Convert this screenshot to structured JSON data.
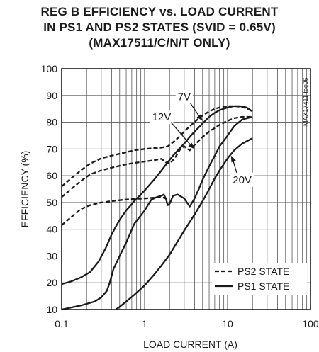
{
  "chart_data": {
    "type": "line",
    "title_lines": [
      "REG B EFFICIENCY vs. LOAD CURRENT",
      "IN PS1 AND PS2 STATES (SVID = 0.65V)",
      "(MAX17511/C/N/T ONLY)"
    ],
    "xlabel": "LOAD CURRENT (A)",
    "ylabel": "EFFICIENCY (%)",
    "x_scale": "log",
    "xlim": [
      0.1,
      100
    ],
    "ylim": [
      10,
      100
    ],
    "x_ticks": [
      0.1,
      1,
      10,
      100
    ],
    "x_tick_labels": [
      "0.1",
      "1",
      "10",
      "100"
    ],
    "y_ticks": [
      10,
      20,
      30,
      40,
      50,
      60,
      70,
      80,
      90,
      100
    ],
    "y_tick_labels": [
      "10",
      "20",
      "30",
      "40",
      "50",
      "60",
      "70",
      "80",
      "90",
      "100"
    ],
    "grid": true,
    "watermark": "MAX17411 toc06",
    "legend": {
      "position": "bottom-right",
      "entries": [
        {
          "label": "PS2 STATE",
          "style": "dashed"
        },
        {
          "label": "PS1 STATE",
          "style": "solid"
        }
      ]
    },
    "annotations": [
      {
        "text": "7V",
        "x": 3.0,
        "y": 89.5,
        "arrow_to": [
          5.0,
          80.5
        ]
      },
      {
        "text": "12V",
        "x": 1.6,
        "y": 82.0,
        "arrow_to": [
          4.0,
          70.0
        ]
      },
      {
        "text": "20V",
        "x": 15.0,
        "y": 58.5,
        "arrow_to": [
          11.0,
          67.5
        ]
      }
    ],
    "series": [
      {
        "style": "dashed",
        "x": [
          0.1,
          0.13,
          0.17,
          0.22,
          0.3,
          0.4,
          0.55,
          0.75,
          1.0,
          1.3,
          1.6,
          1.9,
          2.2,
          2.6,
          3.0,
          3.5,
          4.0,
          4.5,
          5.0,
          6.0,
          7.0,
          8.0,
          10.0,
          12.0,
          14.0,
          17.0,
          20.0
        ],
        "y": [
          56,
          59,
          62,
          64.5,
          66.5,
          67.5,
          68.5,
          69.5,
          70,
          70.3,
          70.5,
          71,
          72.5,
          74.5,
          76.5,
          78.5,
          80,
          81.5,
          82.5,
          84,
          85,
          85.5,
          86,
          86,
          85.8,
          85.2,
          84
        ]
      },
      {
        "style": "dashed",
        "x": [
          0.1,
          0.13,
          0.17,
          0.22,
          0.3,
          0.4,
          0.55,
          0.75,
          1.0,
          1.3,
          1.6,
          1.8,
          2.0,
          2.3,
          2.7,
          3.0,
          3.5,
          4.0,
          5.0,
          6.0,
          8.0,
          10.0,
          12.0,
          15.0,
          20.0
        ],
        "y": [
          52,
          55,
          58,
          60.5,
          62,
          63,
          64,
          64.8,
          65.3,
          65.8,
          66.3,
          65,
          64.5,
          66.5,
          70,
          71,
          69.5,
          71.5,
          74.5,
          76.5,
          79,
          80.5,
          81.5,
          82,
          82
        ]
      },
      {
        "style": "dashed",
        "x": [
          0.1,
          0.13,
          0.17,
          0.22,
          0.3,
          0.4,
          0.55,
          0.75,
          1.0,
          1.3,
          1.6,
          1.8,
          2.0
        ],
        "y": [
          41.5,
          44.5,
          47.5,
          49,
          50,
          50.5,
          51,
          51.3,
          51.5,
          51.8,
          52,
          51.5,
          51
        ]
      },
      {
        "style": "solid",
        "x": [
          0.1,
          0.13,
          0.17,
          0.22,
          0.28,
          0.34,
          0.4,
          0.45,
          0.5,
          0.6,
          0.75,
          1.0,
          1.3,
          1.6,
          1.9,
          2.2,
          2.6,
          3.0,
          3.5,
          4.0,
          5.0,
          6.0,
          7.0,
          8.0,
          10.0,
          12.0,
          14.0,
          17.0,
          20.0
        ],
        "y": [
          19.5,
          20.5,
          22,
          24,
          28,
          33,
          38,
          41,
          43.5,
          47,
          50.5,
          54.5,
          58.5,
          62,
          65,
          67.5,
          70,
          72,
          74.5,
          76.5,
          79.5,
          82,
          83.5,
          84.5,
          85.5,
          86,
          86,
          85.5,
          84
        ]
      },
      {
        "style": "solid",
        "x": [
          0.1,
          0.17,
          0.25,
          0.3,
          0.35,
          0.38,
          0.42,
          0.5,
          0.6,
          0.75,
          1.0,
          1.2,
          1.4,
          1.6,
          1.7,
          1.8,
          1.9,
          2.0,
          2.2,
          2.5,
          3.0,
          3.5,
          4.0,
          4.5,
          5.0,
          6.0,
          7.0,
          8.0,
          10.0,
          12.0,
          15.0,
          20.0
        ],
        "y": [
          10,
          11.5,
          13,
          14.5,
          17,
          20,
          25,
          30,
          35,
          42,
          47,
          51,
          52,
          52.5,
          53,
          51.5,
          49,
          49.5,
          52.5,
          53,
          51.5,
          48.5,
          51.5,
          55,
          58.5,
          63.5,
          67.5,
          71,
          75,
          78.5,
          81,
          82
        ]
      },
      {
        "style": "solid",
        "x": [
          0.45,
          0.5,
          0.6,
          0.75,
          1.0,
          1.3,
          1.6,
          2.0,
          2.5,
          3.0,
          4.0,
          5.0,
          6.0,
          7.0,
          8.0,
          10.0,
          12.0,
          15.0,
          20.0
        ],
        "y": [
          10,
          11,
          13,
          15.5,
          19,
          23,
          26.5,
          30.5,
          35.5,
          39.5,
          45.5,
          50.5,
          55,
          59,
          62,
          66.5,
          69.5,
          72,
          74
        ]
      }
    ]
  }
}
